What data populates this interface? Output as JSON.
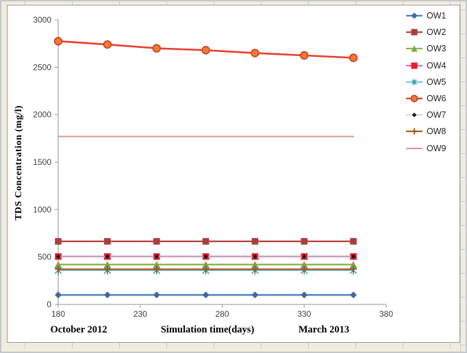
{
  "page": {
    "background": "#f0edde"
  },
  "axis_titles": {
    "y": "TDS Concentration (mg/l)",
    "x": "Simulation time(days)"
  },
  "date_labels": {
    "left": "October  2012",
    "right": "March 2013"
  },
  "chart_data": {
    "type": "line",
    "title": "",
    "xlabel": "Simulation time(days)",
    "ylabel": "TDS Concentration (mg/l)",
    "xlim": [
      180,
      380
    ],
    "ylim": [
      0,
      3000
    ],
    "x_ticks": [
      180,
      230,
      280,
      330,
      380
    ],
    "y_ticks": [
      0,
      500,
      1000,
      1500,
      2000,
      2500,
      3000
    ],
    "grid": false,
    "legend_position": "top-right",
    "x_annotation_left": "October 2012",
    "x_annotation_right": "March 2013",
    "x": [
      180,
      210,
      240,
      270,
      300,
      330,
      360
    ],
    "series": [
      {
        "name": "OW1",
        "values": [
          100,
          100,
          100,
          100,
          100,
          100,
          100
        ],
        "color": "#4f81bd",
        "marker": "diamond",
        "marker_color": "#44689d",
        "marker_size": 5,
        "line_width": 2.4
      },
      {
        "name": "OW2",
        "values": [
          665,
          665,
          665,
          665,
          665,
          665,
          665
        ],
        "color": "#b8423e",
        "marker": "square",
        "marker_color": "#a8403c",
        "marker_size": 4.8,
        "line_width": 2.4
      },
      {
        "name": "OW3",
        "values": [
          420,
          420,
          420,
          420,
          420,
          420,
          420
        ],
        "color": "#94b251",
        "marker": "triangle",
        "marker_color": "#84a243",
        "marker_size": 5.2,
        "line_width": 2.4
      },
      {
        "name": "OW4",
        "values": [
          505,
          505,
          505,
          505,
          505,
          505,
          505
        ],
        "color": "#d06eb0",
        "marker": "square",
        "marker_color": "#ed1c2e",
        "marker_size": 4.8,
        "line_width": 2.4
      },
      {
        "name": "OW5",
        "values": [
          360,
          360,
          360,
          360,
          360,
          360,
          360
        ],
        "color": "#4bacc6",
        "marker": "asterisk",
        "marker_color": "#3f95ad",
        "marker_size": 6.5,
        "line_width": 1.6
      },
      {
        "name": "OW6",
        "values": [
          2775,
          2740,
          2700,
          2680,
          2650,
          2625,
          2600
        ],
        "color": "#ea3b2e",
        "marker": "circle",
        "marker_color": "#ed7d31",
        "marker_stroke": "#cf3a2a",
        "marker_size": 5.4,
        "line_width": 2.6
      },
      {
        "name": "OW7",
        "values": [
          505,
          505,
          505,
          505,
          505,
          505,
          505
        ],
        "color": "#bfbfbf",
        "marker": "diamond",
        "marker_color": "#1a1a1a",
        "marker_size": 3.4,
        "line_width": 1.2
      },
      {
        "name": "OW8",
        "values": [
          372,
          372,
          372,
          372,
          372,
          372,
          372
        ],
        "color": "#b45f1d",
        "marker": "plus",
        "marker_color": "#9c4f14",
        "marker_size": 5,
        "line_width": 2.2
      },
      {
        "name": "OW9",
        "values": [
          1770,
          1770,
          1770,
          1770,
          1770,
          1770,
          1770
        ],
        "color": "#d99694",
        "marker": "none",
        "marker_color": "#d99694",
        "marker_size": 0,
        "line_width": 2
      }
    ]
  },
  "style": {
    "axis_color": "#a6a6a6",
    "tick_label_color": "#3c3c3c",
    "panel_background": "#ffffff"
  }
}
